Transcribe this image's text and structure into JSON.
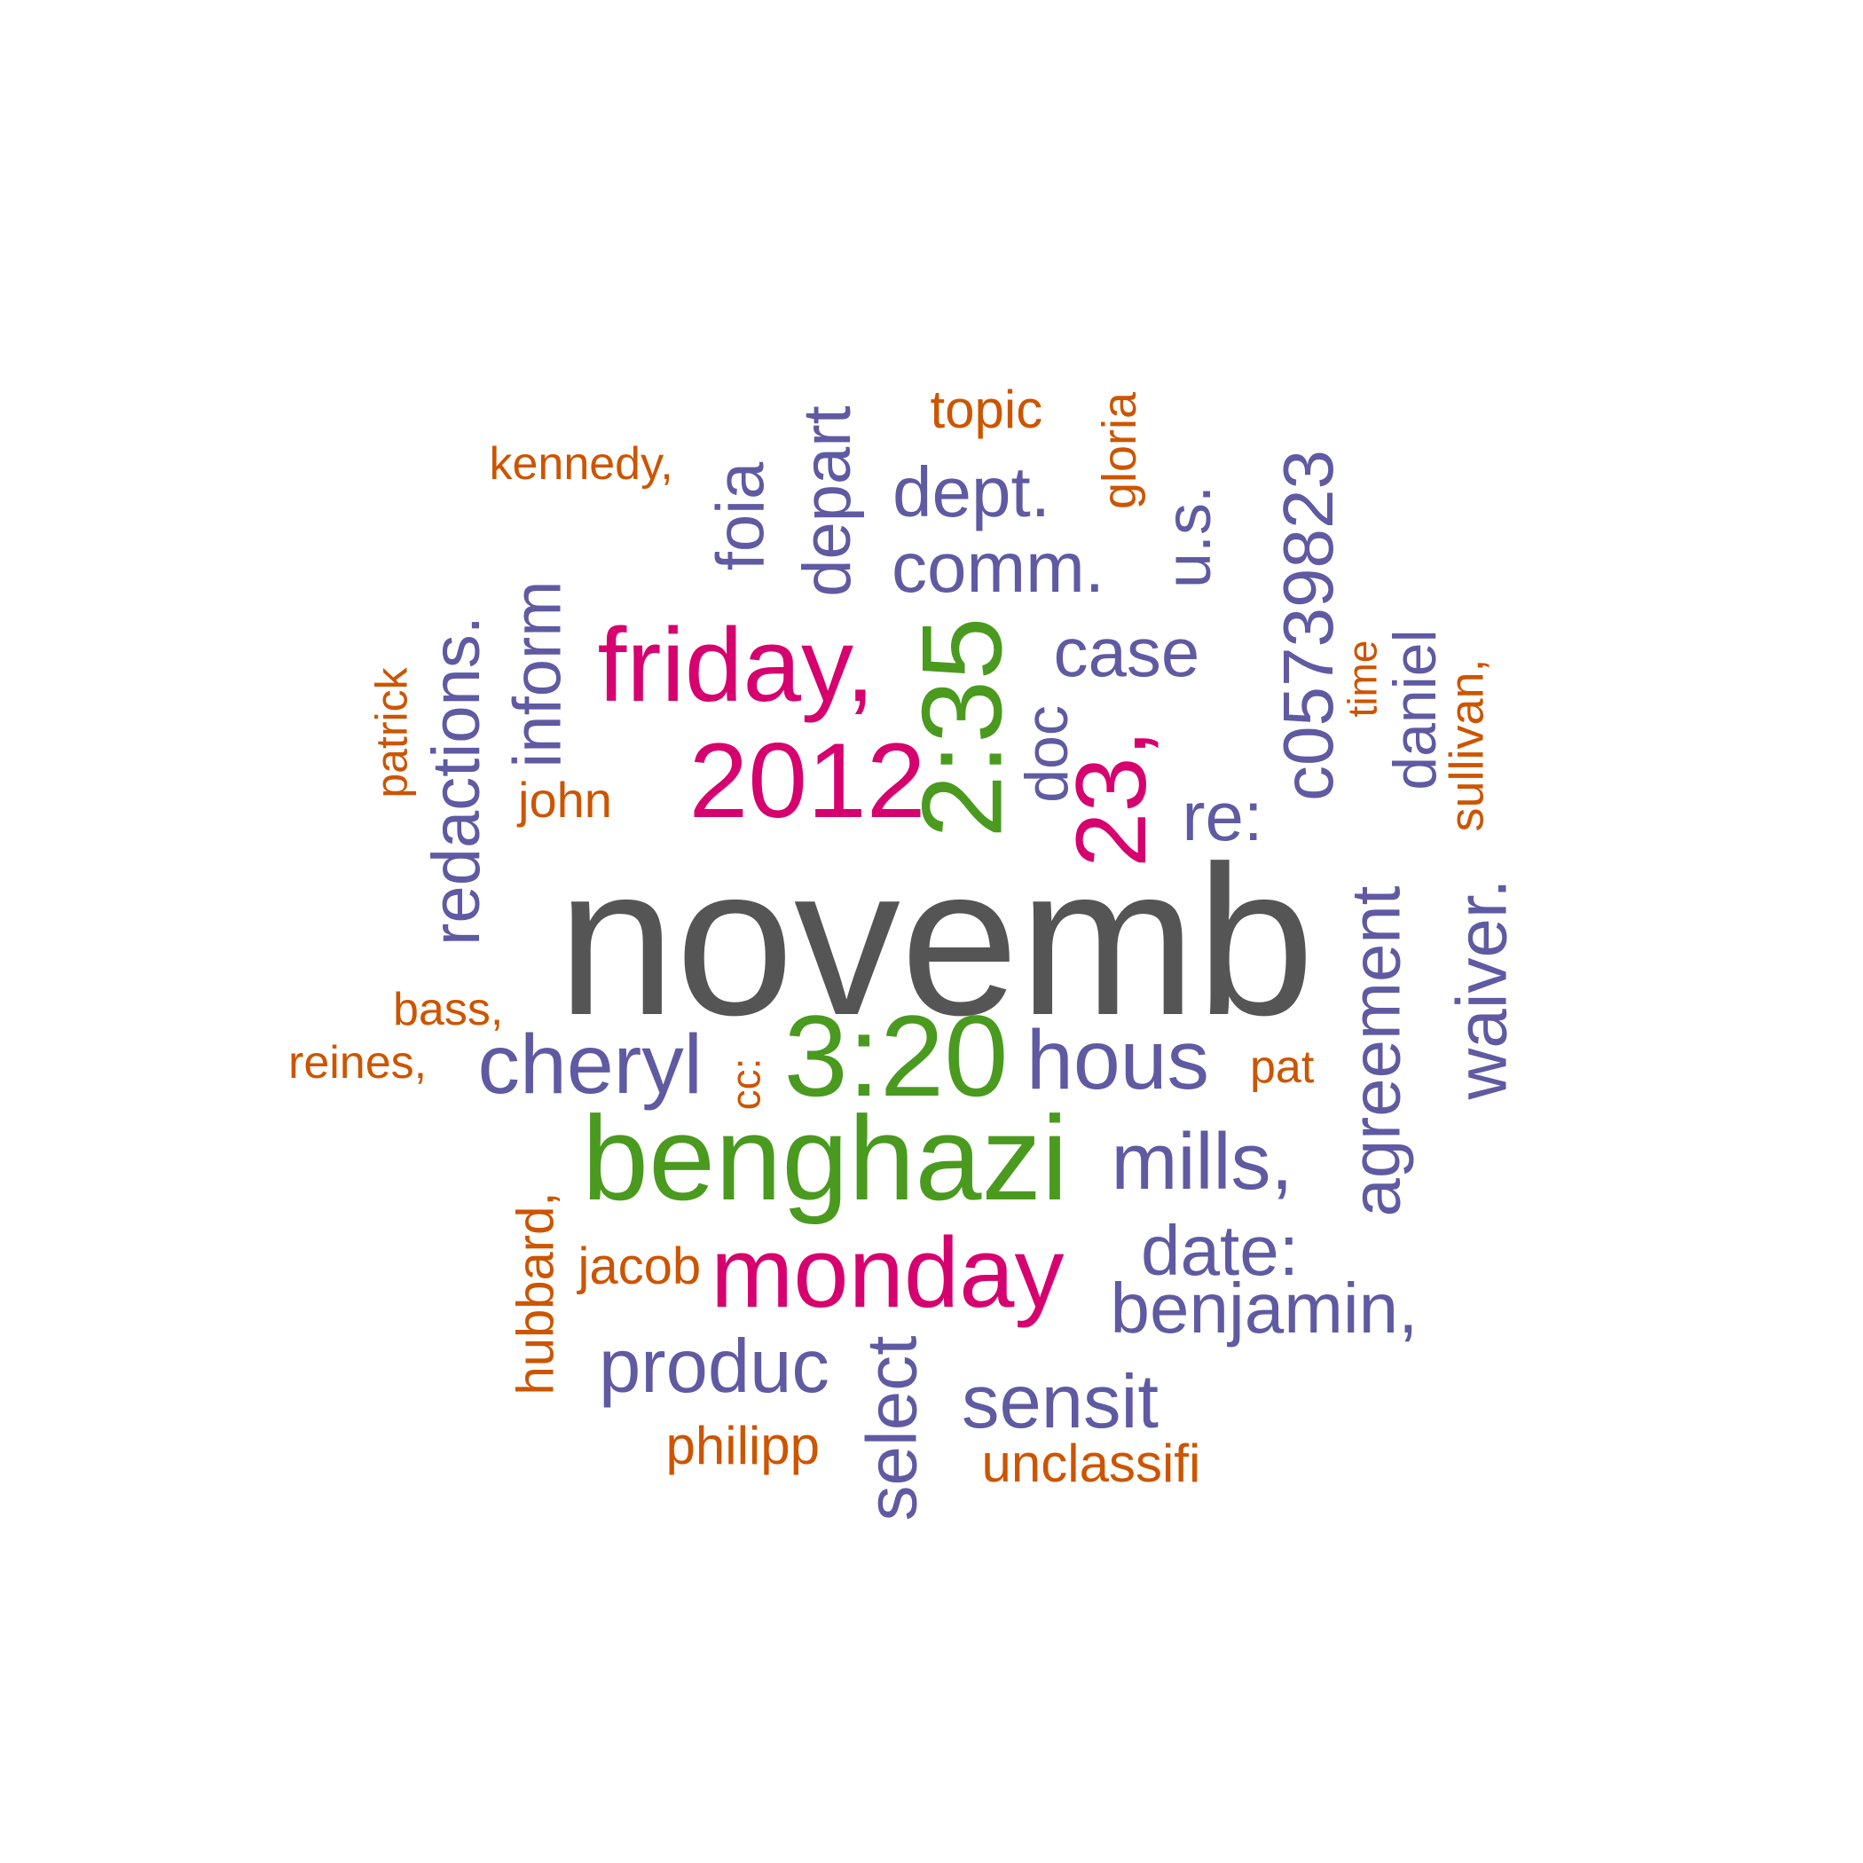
{
  "palette": {
    "gray": "#555555",
    "green": "#4a9a1f",
    "magenta": "#d6006f",
    "purple": "#5f5aa2",
    "orange": "#cc5500"
  },
  "words": [
    {
      "id": "w0",
      "text": "novemb",
      "color": "gray"
    },
    {
      "id": "w1",
      "text": "benghazi",
      "color": "green"
    },
    {
      "id": "w2",
      "text": "3:20",
      "color": "green"
    },
    {
      "id": "w3",
      "text": "2:35",
      "color": "green"
    },
    {
      "id": "w4",
      "text": "2012",
      "color": "magenta"
    },
    {
      "id": "w5",
      "text": "friday,",
      "color": "magenta"
    },
    {
      "id": "w6",
      "text": "monday",
      "color": "magenta"
    },
    {
      "id": "w7",
      "text": "23,",
      "color": "magenta"
    },
    {
      "id": "w8",
      "text": "cheryl",
      "color": "purple"
    },
    {
      "id": "w9",
      "text": "hous",
      "color": "purple"
    },
    {
      "id": "w10",
      "text": "mills,",
      "color": "purple"
    },
    {
      "id": "w11",
      "text": "date:",
      "color": "purple"
    },
    {
      "id": "w12",
      "text": "benjamin,",
      "color": "purple"
    },
    {
      "id": "w13",
      "text": "produc",
      "color": "purple"
    },
    {
      "id": "w14",
      "text": "sensit",
      "color": "purple"
    },
    {
      "id": "w15",
      "text": "select",
      "color": "purple"
    },
    {
      "id": "w16",
      "text": "re:",
      "color": "purple"
    },
    {
      "id": "w17",
      "text": "case",
      "color": "purple"
    },
    {
      "id": "w18",
      "text": "comm.",
      "color": "purple"
    },
    {
      "id": "w19",
      "text": "dept.",
      "color": "purple"
    },
    {
      "id": "w20",
      "text": "doc",
      "color": "purple"
    },
    {
      "id": "w21",
      "text": "u.s.",
      "color": "purple"
    },
    {
      "id": "w22",
      "text": "c05739823",
      "color": "purple"
    },
    {
      "id": "w23",
      "text": "daniel",
      "color": "purple"
    },
    {
      "id": "w24",
      "text": "agreement",
      "color": "purple"
    },
    {
      "id": "w25",
      "text": "waiver.",
      "color": "purple"
    },
    {
      "id": "w26",
      "text": "redactions.",
      "color": "purple"
    },
    {
      "id": "w27",
      "text": "inform",
      "color": "purple"
    },
    {
      "id": "w28",
      "text": "foia",
      "color": "purple"
    },
    {
      "id": "w29",
      "text": "depart",
      "color": "purple"
    },
    {
      "id": "w30",
      "text": "topic",
      "color": "orange"
    },
    {
      "id": "w31",
      "text": "kennedy,",
      "color": "orange"
    },
    {
      "id": "w32",
      "text": "gloria",
      "color": "orange"
    },
    {
      "id": "w33",
      "text": "time",
      "color": "orange"
    },
    {
      "id": "w34",
      "text": "sullivan,",
      "color": "orange"
    },
    {
      "id": "w35",
      "text": "patrick",
      "color": "orange"
    },
    {
      "id": "w36",
      "text": "john",
      "color": "orange"
    },
    {
      "id": "w37",
      "text": "bass,",
      "color": "orange"
    },
    {
      "id": "w38",
      "text": "reines,",
      "color": "orange"
    },
    {
      "id": "w39",
      "text": "cc:",
      "color": "orange"
    },
    {
      "id": "w40",
      "text": "pat",
      "color": "orange"
    },
    {
      "id": "w41",
      "text": "hubbard,",
      "color": "orange"
    },
    {
      "id": "w42",
      "text": "jacob",
      "color": "orange"
    },
    {
      "id": "w43",
      "text": "philipp",
      "color": "orange"
    },
    {
      "id": "w44",
      "text": "unclassifi",
      "color": "orange"
    }
  ]
}
